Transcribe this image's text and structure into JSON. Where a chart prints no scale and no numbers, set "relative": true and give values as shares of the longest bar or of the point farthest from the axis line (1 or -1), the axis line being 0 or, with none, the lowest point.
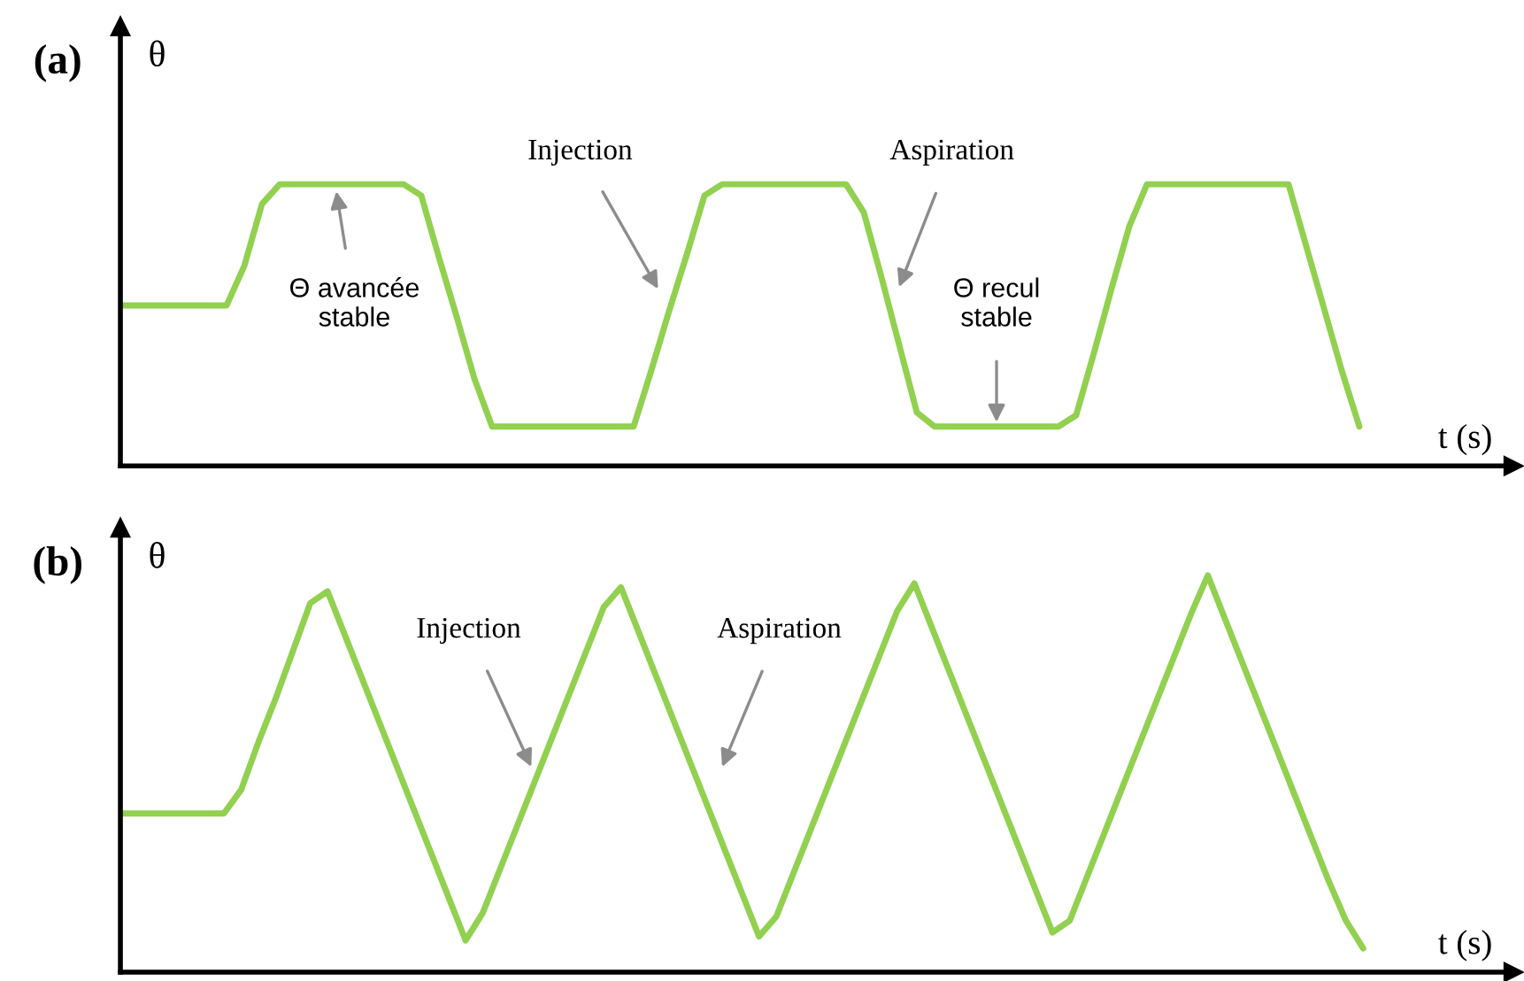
{
  "chart_data": [
    {
      "type": "line",
      "title": "(a)",
      "xlabel": "t (s)",
      "ylabel": "θ",
      "relative": true,
      "categories": [
        null,
        null,
        null,
        null,
        null,
        null,
        null,
        null,
        null,
        null,
        null,
        null,
        null,
        null,
        null,
        null,
        null,
        null,
        null,
        null,
        null,
        null,
        null,
        null,
        null,
        null,
        null,
        null,
        null,
        null,
        null,
        null,
        null,
        null,
        null,
        null,
        null,
        null,
        null,
        null,
        null,
        null,
        null,
        null,
        null,
        null,
        null,
        null,
        null,
        null,
        null,
        null,
        null,
        null,
        null,
        null,
        null,
        null,
        null,
        null,
        null,
        null,
        null,
        null,
        null,
        null,
        null,
        null,
        null,
        null,
        null
      ],
      "series": [
        {
          "color": "#92d050",
          "values": [
            0.57,
            0.57,
            0.57,
            0.57,
            0.57,
            0.57,
            0.57,
            0.71,
            0.93,
            1,
            1,
            1,
            1,
            1,
            1,
            1,
            1,
            0.96,
            0.74,
            0.53,
            0.31,
            0.14,
            0.14,
            0.14,
            0.14,
            0.14,
            0.14,
            0.14,
            0.14,
            0.14,
            0.34,
            0.55,
            0.75,
            0.96,
            1,
            1,
            1,
            1,
            1,
            1,
            1,
            1,
            0.9,
            0.67,
            0.43,
            0.19,
            0.14,
            0.14,
            0.14,
            0.14,
            0.14,
            0.14,
            0.14,
            0.14,
            0.18,
            0.4,
            0.63,
            0.85,
            1,
            1,
            1,
            1,
            1,
            1,
            1,
            1,
            1,
            0.78,
            0.56,
            0.34,
            0.14
          ]
        }
      ],
      "annotations": [
        "Θ avancée\nstable",
        "Injection",
        "Aspiration",
        "Θ recul\nstable"
      ]
    },
    {
      "type": "line",
      "title": "(b)",
      "xlabel": "t (s)",
      "ylabel": "θ",
      "relative": true,
      "categories": [
        null,
        null,
        null,
        null,
        null,
        null,
        null,
        null,
        null,
        null,
        null,
        null,
        null,
        null,
        null,
        null,
        null,
        null,
        null,
        null,
        null,
        null,
        null,
        null,
        null,
        null,
        null,
        null,
        null,
        null,
        null,
        null,
        null,
        null,
        null,
        null,
        null,
        null,
        null,
        null,
        null,
        null,
        null,
        null,
        null,
        null,
        null,
        null,
        null,
        null,
        null,
        null,
        null,
        null,
        null,
        null,
        null,
        null,
        null,
        null,
        null,
        null,
        null,
        null,
        null,
        null,
        null,
        null,
        null,
        null,
        null,
        null,
        null
      ],
      "series": [
        {
          "color": "#92d050",
          "values": [
            0.4,
            0.4,
            0.4,
            0.4,
            0.4,
            0.4,
            0.4,
            0.46,
            0.58,
            0.69,
            0.81,
            0.93,
            0.96,
            0.85,
            0.74,
            0.63,
            0.52,
            0.41,
            0.3,
            0.19,
            0.08,
            0.15,
            0.26,
            0.37,
            0.48,
            0.59,
            0.7,
            0.81,
            0.92,
            0.97,
            0.86,
            0.75,
            0.64,
            0.53,
            0.42,
            0.31,
            0.2,
            0.09,
            0.14,
            0.25,
            0.36,
            0.47,
            0.58,
            0.69,
            0.8,
            0.91,
            0.98,
            0.87,
            0.76,
            0.65,
            0.54,
            0.43,
            0.32,
            0.21,
            0.1,
            0.13,
            0.24,
            0.35,
            0.46,
            0.57,
            0.68,
            0.79,
            0.9,
            1,
            0.89,
            0.78,
            0.67,
            0.56,
            0.45,
            0.34,
            0.23,
            0.13,
            0.06
          ]
        }
      ],
      "annotations": [
        "Injection",
        "Aspiration"
      ]
    }
  ]
}
